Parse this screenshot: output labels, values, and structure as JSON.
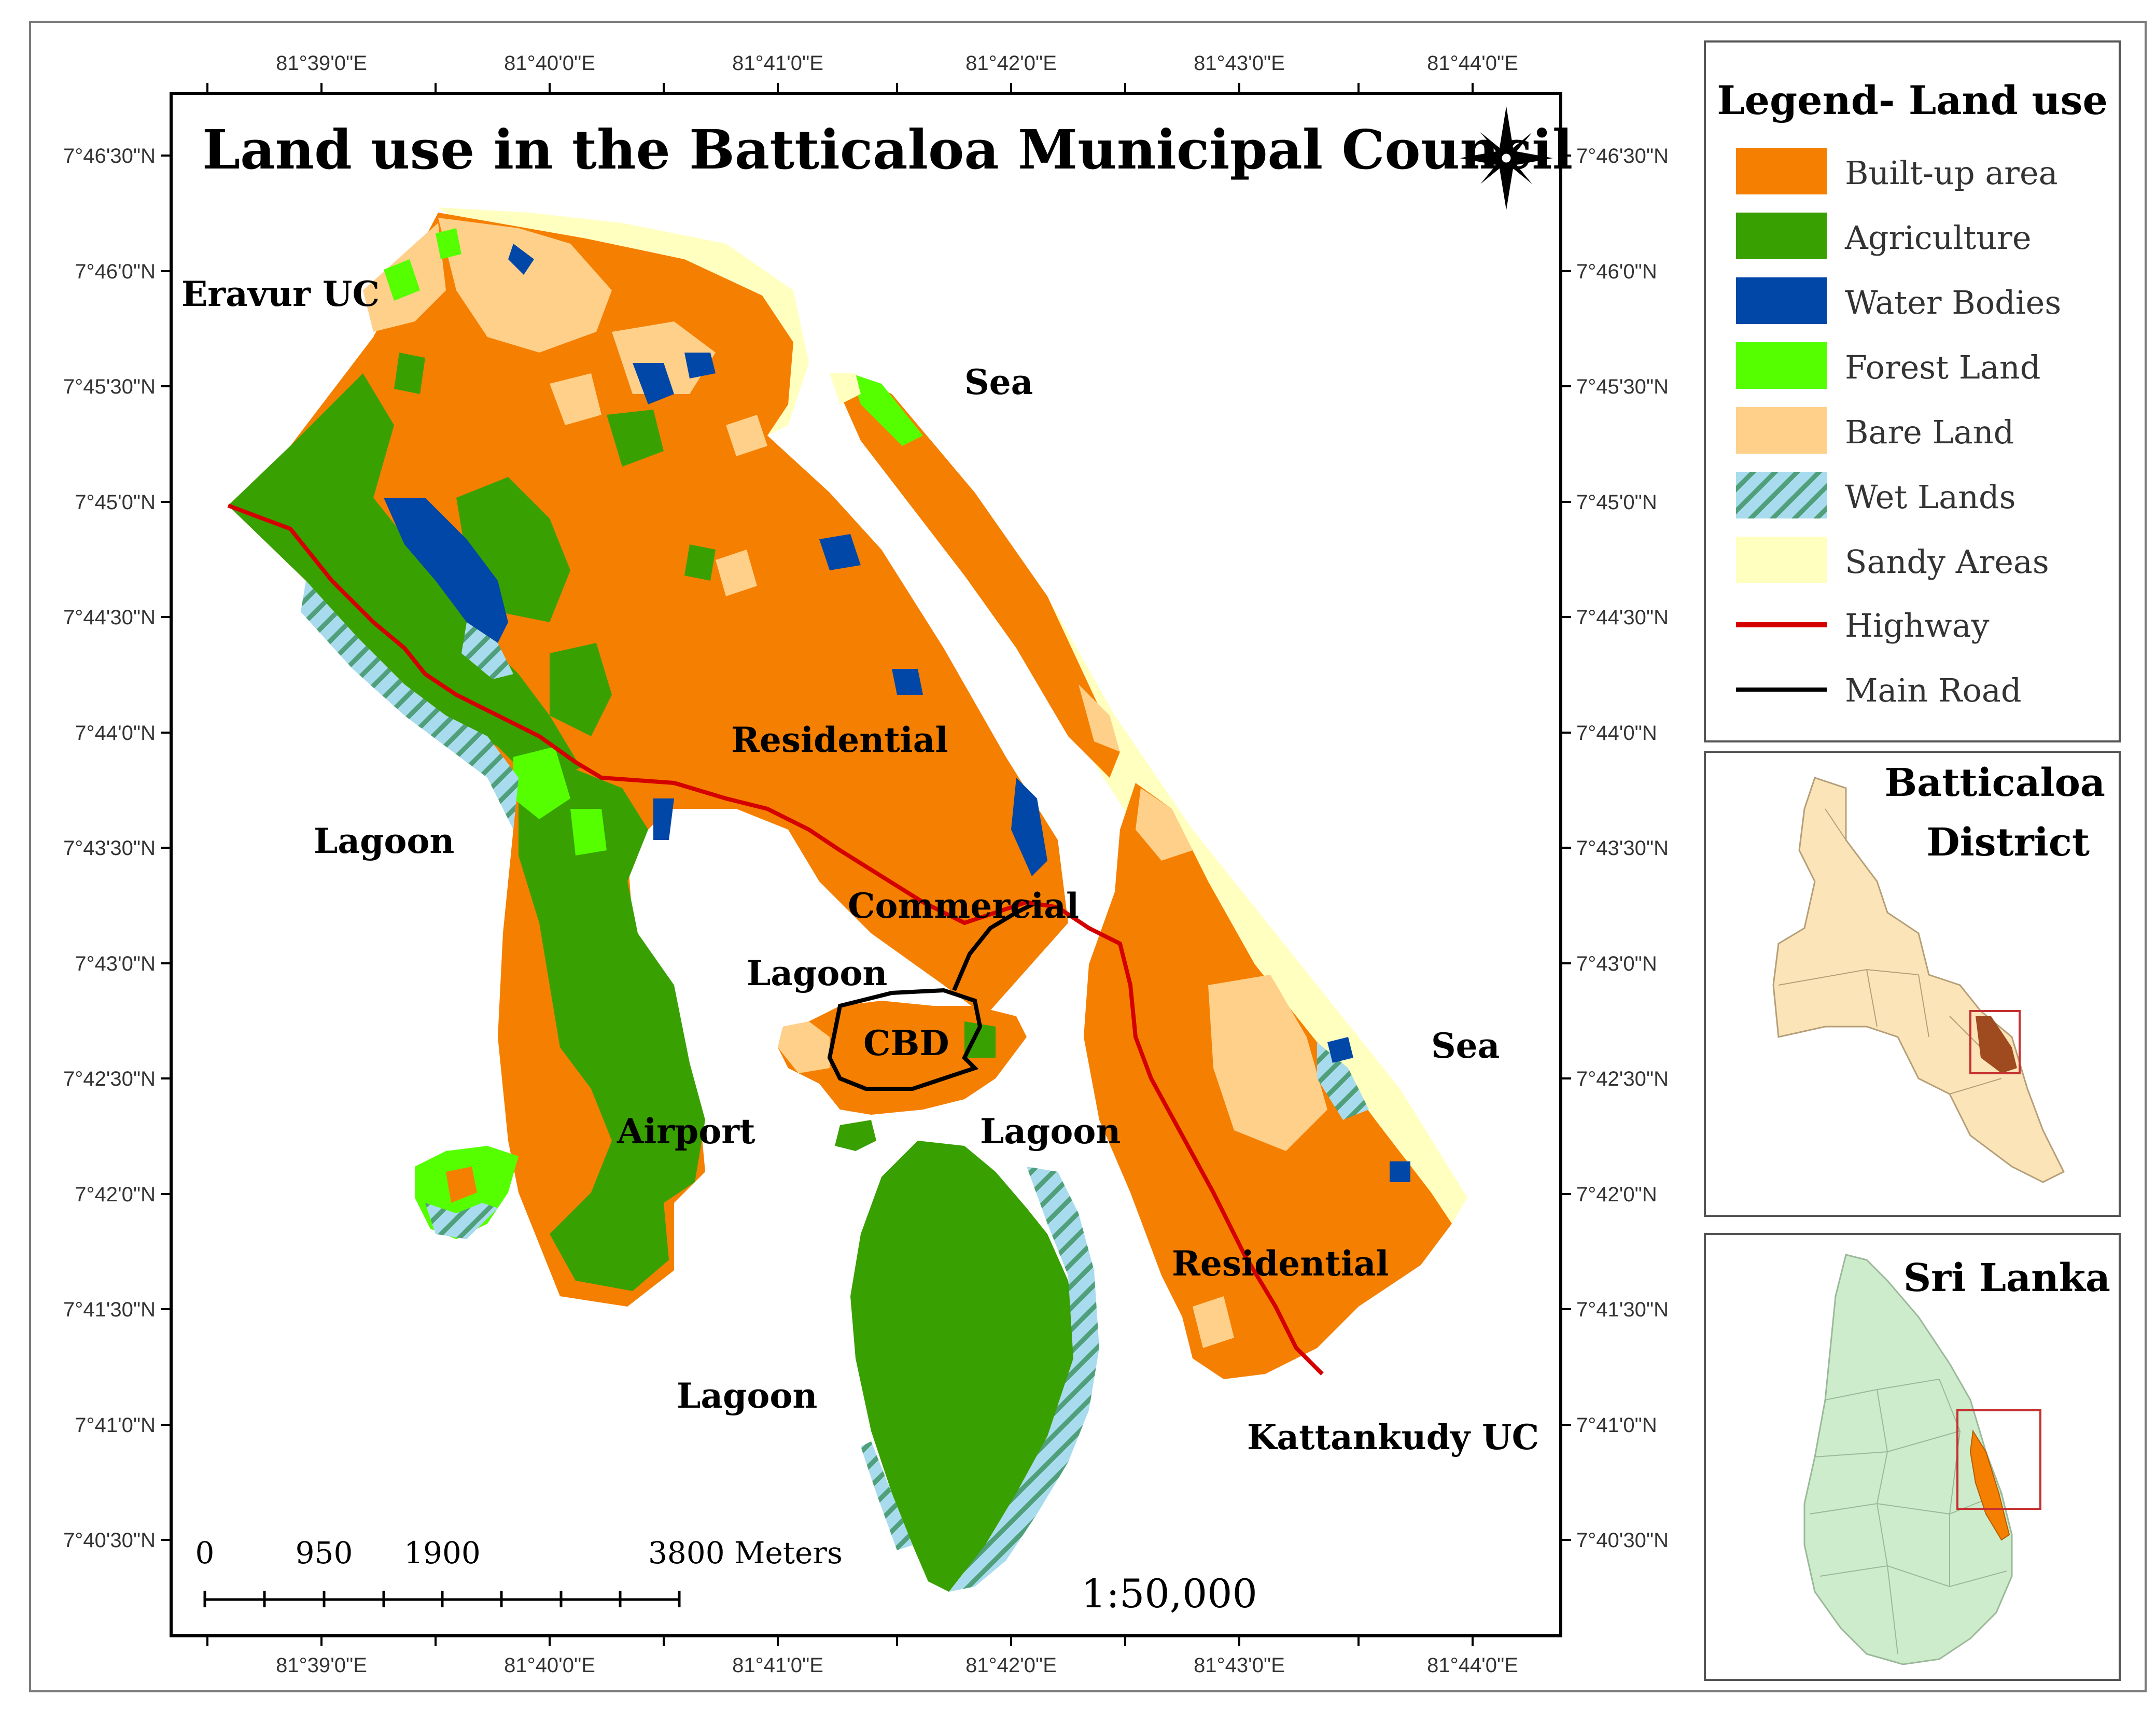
{
  "title": "Land use in the Batticaloa Municipal Council",
  "coordinates": {
    "top_longitudes": [
      "81°39'0\"E",
      "81°40'0\"E",
      "81°41'0\"E",
      "81°42'0\"E",
      "81°43'0\"E",
      "81°44'0\"E"
    ],
    "bottom_longitudes": [
      "81°39'0\"E",
      "81°40'0\"E",
      "81°41'0\"E",
      "81°42'0\"E",
      "81°43'0\"E",
      "81°44'0\"E"
    ],
    "left_latitudes": [
      "7°46'30\"N",
      "7°46'0\"N",
      "7°45'30\"N",
      "7°45'0\"N",
      "7°44'30\"N",
      "7°44'0\"N",
      "7°43'30\"N",
      "7°43'0\"N",
      "7°42'30\"N",
      "7°42'0\"N",
      "7°41'30\"N",
      "7°41'0\"N",
      "7°40'30\"N"
    ],
    "right_latitudes": [
      "7°46'30\"N",
      "7°46'0\"N",
      "7°45'30\"N",
      "7°45'0\"N",
      "7°44'30\"N",
      "7°44'0\"N",
      "7°43'30\"N",
      "7°43'0\"N",
      "7°42'30\"N",
      "7°42'0\"N",
      "7°41'30\"N",
      "7°41'0\"N",
      "7°40'30\"N"
    ]
  },
  "map_labels": {
    "eravur": "Eravur UC",
    "sea_top": "Sea",
    "sea_right": "Sea",
    "lagoon_left": "Lagoon",
    "lagoon_mid": "Lagoon",
    "lagoon_right": "Lagoon",
    "lagoon_bottom": "Lagoon",
    "residential_north": "Residential",
    "residential_south": "Residential",
    "commercial": "Commercial",
    "cbd": "CBD",
    "airport": "Airport",
    "kattankudy": "Kattankudy UC"
  },
  "scale_bar": {
    "ticks": [
      "0",
      "950",
      "1900",
      "3800 Meters"
    ],
    "ratio": "1:50,000"
  },
  "legend": {
    "title": "Legend- Land use",
    "items": [
      {
        "label": "Built-up area",
        "color": "#f57f00",
        "kind": "fill"
      },
      {
        "label": "Agriculture",
        "color": "#38a000",
        "kind": "fill"
      },
      {
        "label": "Water Bodies",
        "color": "#0047a8",
        "kind": "fill"
      },
      {
        "label": "Forest Land",
        "color": "#55ff00",
        "kind": "fill"
      },
      {
        "label": "Bare Land",
        "color": "#ffd08a",
        "kind": "fill"
      },
      {
        "label": "Wet Lands",
        "color": "#9ed6ea",
        "kind": "hatch"
      },
      {
        "label": "Sandy Areas",
        "color": "#ffffc0",
        "kind": "fill"
      },
      {
        "label": "Highway",
        "color": "#d40000",
        "kind": "line"
      },
      {
        "label": "Main Road",
        "color": "#000000",
        "kind": "line"
      }
    ]
  },
  "inset_district": {
    "title_line1": "Batticaloa",
    "title_line2": "District",
    "fill": "#fbe4b8",
    "highlight": "#f57f00"
  },
  "inset_country": {
    "title": "Sri Lanka",
    "fill": "#cdeccb",
    "highlight": "#f57f00"
  }
}
